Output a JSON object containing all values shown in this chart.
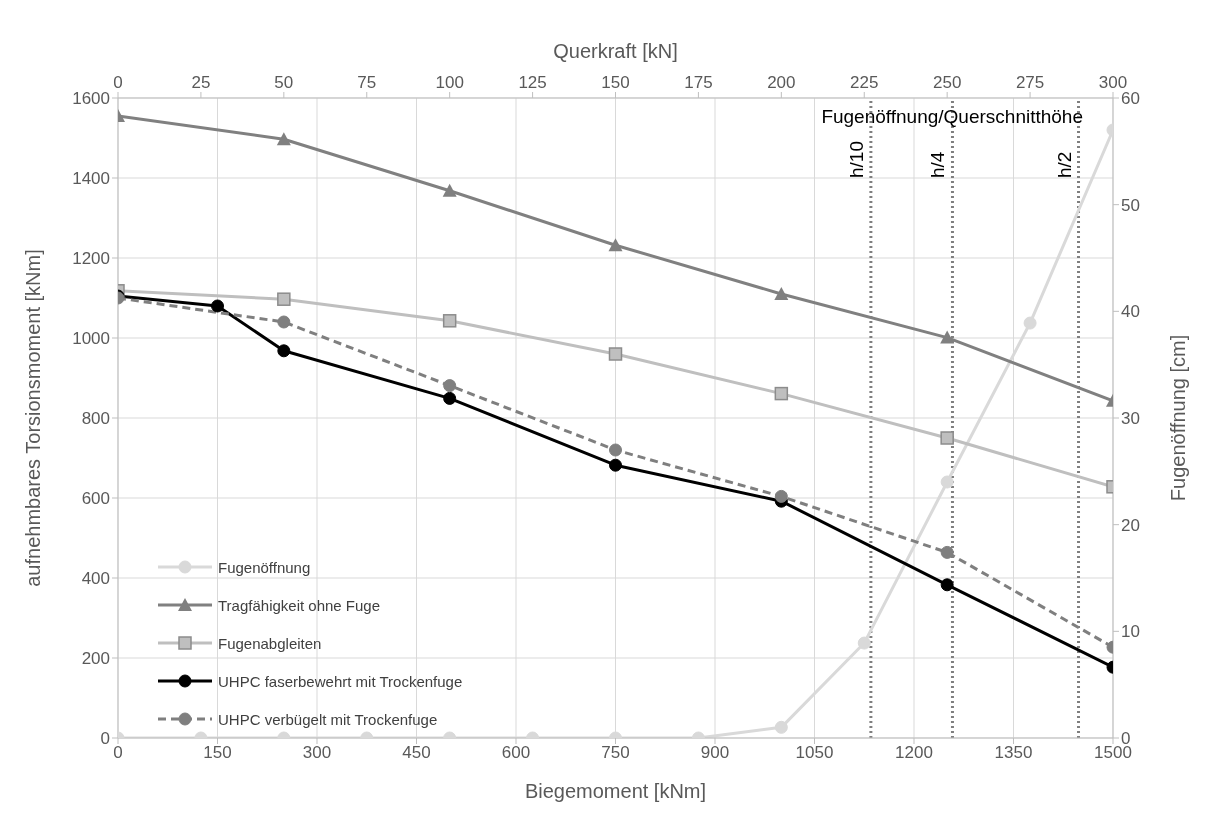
{
  "chart_data": {
    "type": "line",
    "xlabel": "Biegemoment [kNm]",
    "ylabel": "aufnehmbares Torsionsmoment [kNm]",
    "y2label": "Fugenöffnung [cm]",
    "x2label": "Querkraft [kN]",
    "xlim": [
      0,
      1500
    ],
    "xticks": [
      0,
      150,
      300,
      450,
      600,
      750,
      900,
      1050,
      1200,
      1350,
      1500
    ],
    "x2lim": [
      0,
      300
    ],
    "x2ticks": [
      0,
      25,
      50,
      75,
      100,
      125,
      150,
      175,
      200,
      225,
      250,
      275,
      300
    ],
    "ylim": [
      0,
      1600
    ],
    "yticks": [
      0,
      200,
      400,
      600,
      800,
      1000,
      1200,
      1400,
      1600
    ],
    "y2lim": [
      0,
      60
    ],
    "y2ticks": [
      0,
      10,
      20,
      30,
      40,
      50,
      60
    ],
    "grid": true,
    "legend": "bottom left",
    "series": [
      {
        "name": "Fugenöffnung",
        "color": "#d9d9d9",
        "axis": "y2",
        "marker": "circle",
        "line_style": "solid",
        "x": [
          0,
          125,
          250,
          375,
          500,
          625,
          750,
          875,
          1000,
          1125,
          1250,
          1375,
          1500
        ],
        "values": [
          0,
          0,
          0,
          0,
          0,
          0,
          0,
          0,
          1,
          8.9,
          24,
          38.9,
          57
        ]
      },
      {
        "name": "Tragfähigkeit ohne Fuge",
        "color": "#808080",
        "marker": "triangle",
        "line_style": "solid",
        "x": [
          0,
          250,
          500,
          750,
          1000,
          1250,
          1500
        ],
        "values": [
          1555,
          1497,
          1368,
          1232,
          1110,
          1001,
          843
        ]
      },
      {
        "name": "Fugenabgleiten",
        "color": "#bfbfbf",
        "marker": "square",
        "line_style": "solid",
        "x": [
          0,
          250,
          500,
          750,
          1000,
          1250,
          1500
        ],
        "values": [
          1118,
          1097,
          1043,
          960,
          861,
          750,
          628
        ]
      },
      {
        "name": "UHPC faserbewehrt mit Trockenfuge",
        "color": "#000000",
        "marker": "circle",
        "line_style": "solid",
        "x": [
          0,
          150,
          250,
          500,
          750,
          1000,
          1250,
          1500
        ],
        "values": [
          1105,
          1080,
          968,
          849,
          682,
          592,
          383,
          177
        ]
      },
      {
        "name": "UHPC verbügelt mit Trockenfuge",
        "color": "#7f7f7f",
        "marker": "circle",
        "line_style": "dashed",
        "x": [
          0,
          250,
          500,
          750,
          1000,
          1250,
          1500
        ],
        "values": [
          1100,
          1040,
          881,
          720,
          604,
          464,
          227
        ]
      }
    ],
    "ref_lines": [
      {
        "axis": "x",
        "value": 1135,
        "label": "h/10",
        "color": "#7f7f7f",
        "line_style": "dotted"
      },
      {
        "axis": "x",
        "value": 1258,
        "label": "h/4",
        "color": "#7f7f7f",
        "line_style": "dotted"
      },
      {
        "axis": "x",
        "value": 1448,
        "label": "h/2",
        "color": "#7f7f7f",
        "line_style": "dotted"
      }
    ],
    "annotations": [
      "Fugenöffnung/Querschnitthöhe"
    ]
  }
}
